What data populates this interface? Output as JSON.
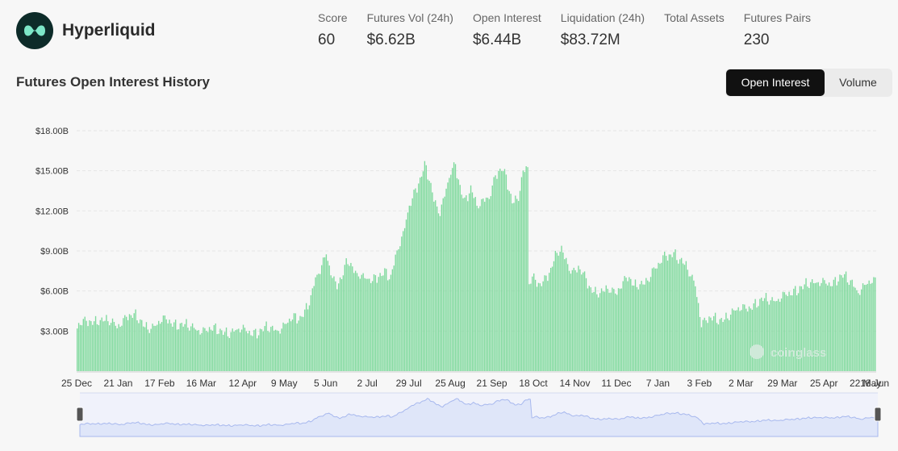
{
  "header": {
    "brand": "Hyperliquid",
    "logo_icon": "hyperliquid-logo-icon",
    "logo_color": "#0d2b29",
    "logo_accent": "#7de6c8"
  },
  "stats": [
    {
      "label": "Score",
      "value": "60"
    },
    {
      "label": "Futures Vol (24h)",
      "value": "$6.62B"
    },
    {
      "label": "Open Interest",
      "value": "$6.44B"
    },
    {
      "label": "Liquidation (24h)",
      "value": "$83.72M"
    },
    {
      "label": "Total Assets",
      "value": ""
    },
    {
      "label": "Futures Pairs",
      "value": "230"
    }
  ],
  "section_title": "Futures Open Interest History",
  "toggle": {
    "active": "Open Interest",
    "inactive": "Volume"
  },
  "watermark": "coinglass",
  "colors": {
    "bar": "#7ed99c",
    "navigator_fill": "#dfe6f9",
    "navigator_line": "#a7b8ee",
    "grid": "#e6e6e6"
  },
  "chart_data": {
    "type": "bar",
    "title": "",
    "xlabel": "",
    "ylabel": "",
    "ylim": [
      0,
      18000000000
    ],
    "yticks": [
      3000000000,
      6000000000,
      9000000000,
      12000000000,
      15000000000,
      18000000000
    ],
    "ytick_labels": [
      "$3.00B",
      "$6.00B",
      "$9.00B",
      "$12.00B",
      "$15.00B",
      "$18.00B"
    ],
    "x_ticks": [
      "25 Dec",
      "21 Jan",
      "17 Feb",
      "16 Mar",
      "12 Apr",
      "9 May",
      "5 Jun",
      "2 Jul",
      "29 Jul",
      "25 Aug",
      "21 Sep",
      "18 Oct",
      "14 Nov",
      "11 Dec",
      "7 Jan",
      "3 Feb",
      "2 Mar",
      "29 Mar",
      "25 Apr",
      "22 May",
      "18 Jun"
    ],
    "days_between_ticks": 27,
    "grid": true,
    "legend": "none",
    "series": [
      {
        "unit": "billion USD",
        "keypoints": [
          [
            0,
            3.4
          ],
          [
            7,
            3.6
          ],
          [
            14,
            4.0
          ],
          [
            20,
            3.6
          ],
          [
            26,
            3.4
          ],
          [
            32,
            4.2
          ],
          [
            38,
            4.0
          ],
          [
            44,
            3.4
          ],
          [
            50,
            3.4
          ],
          [
            58,
            3.8
          ],
          [
            66,
            3.6
          ],
          [
            72,
            3.2
          ],
          [
            80,
            3.2
          ],
          [
            90,
            3.0
          ],
          [
            100,
            3.0
          ],
          [
            110,
            3.0
          ],
          [
            120,
            3.0
          ],
          [
            130,
            3.2
          ],
          [
            140,
            3.8
          ],
          [
            145,
            4.0
          ],
          [
            148,
            4.6
          ],
          [
            152,
            5.6
          ],
          [
            155,
            6.8
          ],
          [
            158,
            7.4
          ],
          [
            162,
            8.8
          ],
          [
            165,
            7.6
          ],
          [
            168,
            6.6
          ],
          [
            172,
            6.8
          ],
          [
            176,
            8.2
          ],
          [
            180,
            7.6
          ],
          [
            184,
            7.4
          ],
          [
            188,
            6.8
          ],
          [
            192,
            6.6
          ],
          [
            196,
            7.2
          ],
          [
            200,
            7.6
          ],
          [
            204,
            7.0
          ],
          [
            208,
            8.8
          ],
          [
            212,
            10.2
          ],
          [
            216,
            12.6
          ],
          [
            220,
            13.6
          ],
          [
            223,
            14.2
          ],
          [
            226,
            15.2
          ],
          [
            229,
            14.4
          ],
          [
            232,
            13.0
          ],
          [
            236,
            12.0
          ],
          [
            240,
            13.4
          ],
          [
            243,
            14.8
          ],
          [
            246,
            15.4
          ],
          [
            249,
            14.0
          ],
          [
            252,
            12.8
          ],
          [
            256,
            13.6
          ],
          [
            260,
            12.2
          ],
          [
            264,
            12.8
          ],
          [
            268,
            13.2
          ],
          [
            272,
            14.6
          ],
          [
            276,
            15.0
          ],
          [
            279,
            14.4
          ],
          [
            283,
            12.8
          ],
          [
            287,
            13.2
          ],
          [
            290,
            14.8
          ],
          [
            293,
            15.0
          ],
          [
            294,
            6.5
          ],
          [
            297,
            7.0
          ],
          [
            300,
            6.7
          ],
          [
            304,
            6.9
          ],
          [
            308,
            7.4
          ],
          [
            312,
            8.8
          ],
          [
            315,
            9.2
          ],
          [
            318,
            8.4
          ],
          [
            322,
            7.4
          ],
          [
            326,
            7.6
          ],
          [
            330,
            7.0
          ],
          [
            334,
            6.3
          ],
          [
            338,
            6.0
          ],
          [
            342,
            5.8
          ],
          [
            346,
            6.0
          ],
          [
            350,
            6.0
          ],
          [
            354,
            6.6
          ],
          [
            358,
            7.0
          ],
          [
            362,
            6.2
          ],
          [
            366,
            6.6
          ],
          [
            370,
            6.8
          ],
          [
            374,
            7.4
          ],
          [
            378,
            7.8
          ],
          [
            382,
            8.6
          ],
          [
            385,
            8.8
          ],
          [
            388,
            9.0
          ],
          [
            391,
            8.4
          ],
          [
            395,
            7.8
          ],
          [
            399,
            7.2
          ],
          [
            402,
            6.6
          ],
          [
            404,
            5.2
          ],
          [
            406,
            3.6
          ],
          [
            412,
            3.8
          ],
          [
            420,
            4.0
          ],
          [
            428,
            4.4
          ],
          [
            434,
            4.8
          ],
          [
            440,
            5.0
          ],
          [
            446,
            5.2
          ],
          [
            452,
            5.4
          ],
          [
            458,
            5.6
          ],
          [
            464,
            5.6
          ],
          [
            470,
            6.4
          ],
          [
            474,
            6.6
          ],
          [
            480,
            6.4
          ],
          [
            486,
            6.8
          ],
          [
            492,
            6.6
          ],
          [
            498,
            7.0
          ],
          [
            504,
            6.8
          ],
          [
            508,
            6.0
          ],
          [
            512,
            6.2
          ],
          [
            516,
            6.6
          ],
          [
            519,
            6.8
          ]
        ]
      }
    ]
  }
}
